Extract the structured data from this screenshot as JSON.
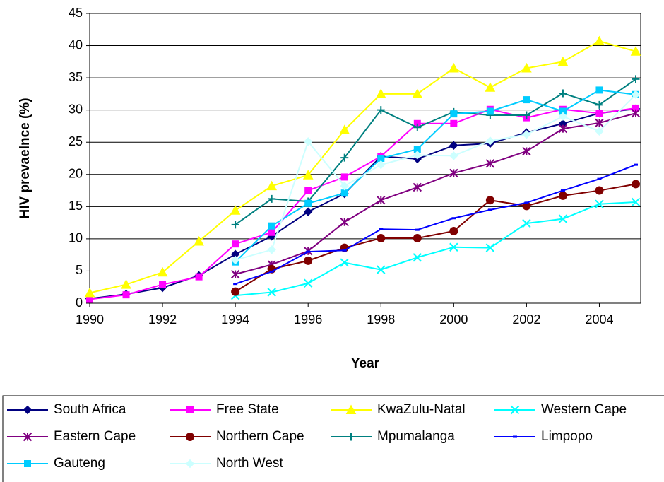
{
  "chart_data": {
    "type": "line",
    "x_label": "Year",
    "y_label": "HIV prevaelnce (%)",
    "x": [
      1990,
      1991,
      1992,
      1993,
      1994,
      1995,
      1996,
      1997,
      1998,
      1999,
      2000,
      2001,
      2002,
      2003,
      2004,
      2005
    ],
    "xlim": [
      1990,
      2005
    ],
    "xticks": [
      1990,
      1992,
      1994,
      1996,
      1998,
      2000,
      2002,
      2004
    ],
    "ylim": [
      0,
      45
    ],
    "yticks": [
      0,
      5,
      10,
      15,
      20,
      25,
      30,
      35,
      40,
      45
    ],
    "grid": true,
    "legend": "bottom",
    "series": [
      {
        "name": "South Africa",
        "color": "#000080",
        "marker": "diamond",
        "values": [
          0.7,
          1.4,
          2.4,
          4.3,
          7.6,
          10.4,
          14.2,
          17.0,
          22.8,
          22.4,
          24.5,
          24.8,
          26.5,
          27.9,
          29.5,
          30.2
        ]
      },
      {
        "name": "Free State",
        "color": "#FF00FF",
        "marker": "square",
        "values": [
          0.6,
          1.3,
          2.9,
          4.1,
          9.2,
          11.0,
          17.5,
          19.6,
          22.8,
          27.9,
          27.9,
          30.1,
          28.8,
          30.1,
          29.5,
          30.3
        ]
      },
      {
        "name": "KwaZulu-Natal",
        "color": "#FFFF00",
        "marker": "triangle",
        "values": [
          1.6,
          2.9,
          4.8,
          9.6,
          14.4,
          18.2,
          19.9,
          26.9,
          32.5,
          32.5,
          36.5,
          33.5,
          36.5,
          37.5,
          40.7,
          39.1
        ]
      },
      {
        "name": "Western Cape",
        "color": "#00FFFF",
        "marker": "x",
        "values": [
          null,
          null,
          null,
          null,
          1.2,
          1.7,
          3.1,
          6.3,
          5.2,
          7.1,
          8.7,
          8.6,
          12.4,
          13.1,
          15.4,
          15.7
        ]
      },
      {
        "name": "Eastern Cape",
        "color": "#800080",
        "marker": "star",
        "values": [
          null,
          null,
          null,
          null,
          4.5,
          6.0,
          8.1,
          12.6,
          16.0,
          18.0,
          20.2,
          21.7,
          23.6,
          27.1,
          28.0,
          29.5
        ]
      },
      {
        "name": "Northern Cape",
        "color": "#800000",
        "marker": "circle",
        "values": [
          null,
          null,
          null,
          null,
          1.8,
          5.3,
          6.6,
          8.6,
          10.1,
          10.1,
          11.2,
          16.0,
          15.1,
          16.7,
          17.5,
          18.5
        ]
      },
      {
        "name": "Mpumalanga",
        "color": "#008080",
        "marker": "plus",
        "values": [
          null,
          null,
          null,
          null,
          12.2,
          16.2,
          15.8,
          22.6,
          30.0,
          27.3,
          29.7,
          29.2,
          29.2,
          32.6,
          30.8,
          34.8
        ]
      },
      {
        "name": "Limpopo",
        "color": "#0000FF",
        "marker": "dash",
        "values": [
          null,
          null,
          null,
          null,
          3.0,
          4.9,
          8.0,
          8.2,
          11.5,
          11.4,
          13.2,
          14.5,
          15.6,
          17.5,
          19.3,
          21.5
        ]
      },
      {
        "name": "Gauteng",
        "color": "#00CCFF",
        "marker": "square",
        "values": [
          null,
          null,
          null,
          null,
          6.4,
          12.0,
          15.5,
          17.1,
          22.5,
          23.9,
          29.4,
          29.8,
          31.6,
          29.8,
          33.1,
          32.4
        ]
      },
      {
        "name": "North West",
        "color": "#CCFFFF",
        "marker": "diamond",
        "values": [
          null,
          null,
          null,
          null,
          6.7,
          8.3,
          25.1,
          18.2,
          21.5,
          23.0,
          22.9,
          25.2,
          26.2,
          29.0,
          26.7,
          32.4
        ]
      }
    ]
  }
}
